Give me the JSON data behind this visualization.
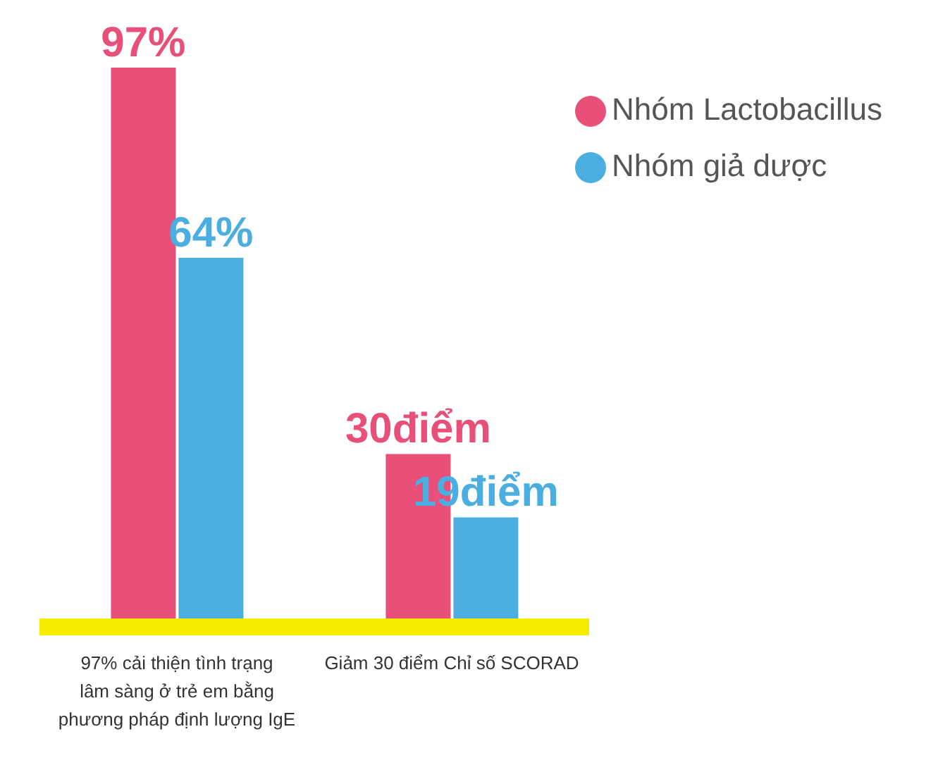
{
  "chart_data": {
    "type": "bar",
    "categories": [
      "97% cải thiện tình trạng lâm sàng ở trẻ em bằng phương pháp định lượng IgE",
      "Giảm 30 điểm Chỉ số SCORAD"
    ],
    "series": [
      {
        "name": "Nhóm Lactobacillus",
        "color": "#e8507a",
        "values": [
          97,
          30
        ],
        "value_labels": [
          "97%",
          "30điểm"
        ]
      },
      {
        "name": "Nhóm giả dược",
        "color": "#4aaee0",
        "values": [
          64,
          19
        ],
        "value_labels": [
          "64%",
          "19điểm"
        ]
      }
    ],
    "legend": "top right",
    "grid": false,
    "tick_labels": "x"
  }
}
